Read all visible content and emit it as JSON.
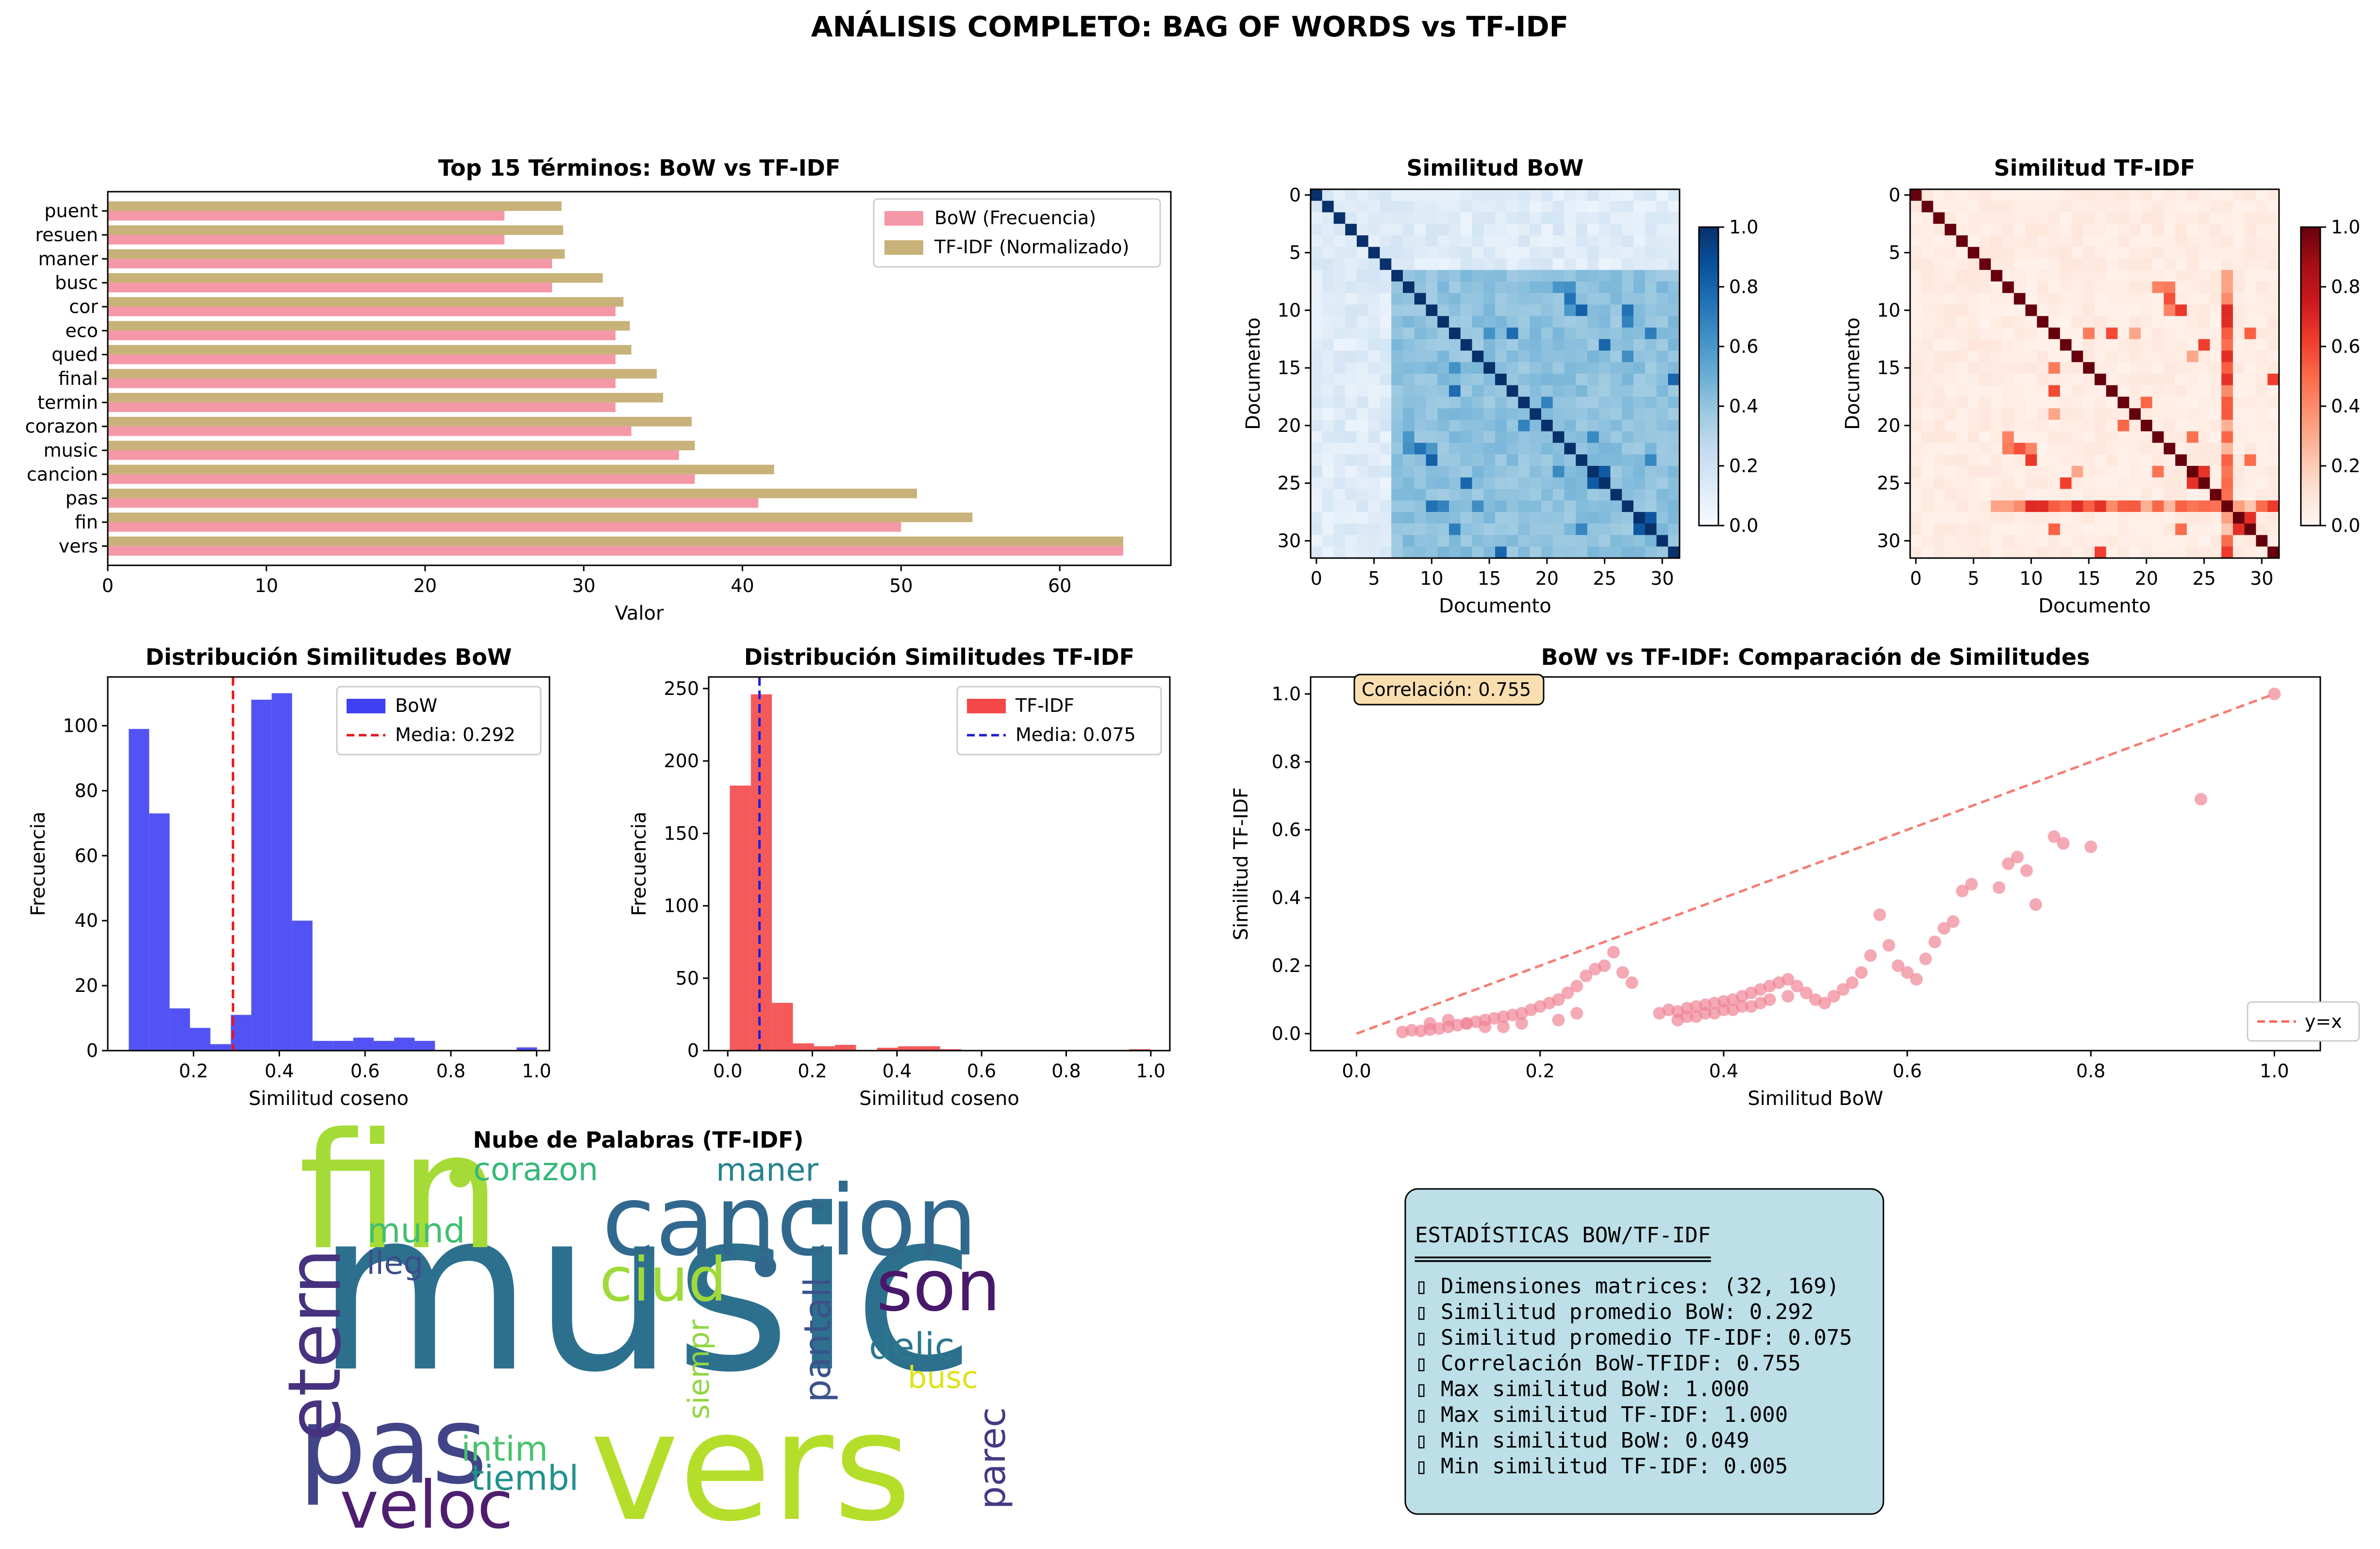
{
  "figure": {
    "title": "ANÁLISIS COMPLETO: BAG OF WORDS vs TF-IDF"
  },
  "colors": {
    "bow_bar": "#f497a7",
    "tfidf_bar": "#c9b27a",
    "hist_bow": "#4040f4",
    "hist_tfidf": "#f44848",
    "scatter": "#f08496",
    "stats_box": "#bcdfe8",
    "corr_box": "#f9deb0"
  },
  "chart_data": [
    {
      "id": "top_terms",
      "type": "bar",
      "orientation": "horizontal",
      "title": "Top 15 Términos: BoW vs TF-IDF",
      "xlabel": "Valor",
      "ylabel": "",
      "xlim": [
        0,
        67
      ],
      "xticks": [
        0,
        10,
        20,
        30,
        40,
        50,
        60
      ],
      "categories": [
        "vers",
        "fin",
        "pas",
        "cancion",
        "music",
        "corazon",
        "termin",
        "final",
        "qued",
        "eco",
        "cor",
        "busc",
        "maner",
        "resuen",
        "puent"
      ],
      "series": [
        {
          "name": "BoW (Frecuencia)",
          "values": [
            64,
            50,
            41,
            37,
            36,
            33,
            32,
            32,
            32,
            32,
            32,
            28,
            28,
            25,
            25
          ]
        },
        {
          "name": "TF-IDF (Normalizado)",
          "values": [
            64,
            54.5,
            51,
            42,
            37,
            36.8,
            35,
            34.6,
            33,
            32.9,
            32.5,
            31.2,
            28.8,
            28.7,
            28.6
          ]
        }
      ],
      "legend": "top-right"
    },
    {
      "id": "sim_bow",
      "type": "heatmap",
      "title": "Similitud BoW",
      "xlabel": "Documento",
      "ylabel": "Documento",
      "size": 32,
      "ticks": [
        0,
        5,
        10,
        15,
        20,
        25,
        30
      ],
      "colorbar_ticks": [
        "0.0",
        "0.2",
        "0.4",
        "0.6",
        "0.8",
        "1.0"
      ],
      "colormap": "Blues",
      "mean_value": 0.292
    },
    {
      "id": "sim_tfidf",
      "type": "heatmap",
      "title": "Similitud TF-IDF",
      "xlabel": "Documento",
      "ylabel": "Documento",
      "size": 32,
      "ticks": [
        0,
        5,
        10,
        15,
        20,
        25,
        30
      ],
      "colorbar_ticks": [
        "0.0",
        "0.2",
        "0.4",
        "0.6",
        "0.8",
        "1.0"
      ],
      "colormap": "Reds",
      "mean_value": 0.075
    },
    {
      "id": "hist_bow",
      "type": "bar",
      "title": "Distribución Similitudes BoW",
      "xlabel": "Similitud coseno",
      "ylabel": "Frecuencia",
      "xlim": [
        0.0,
        1.03
      ],
      "ylim": [
        0,
        115
      ],
      "xticks": [
        0.2,
        0.4,
        0.6,
        0.8,
        1.0
      ],
      "yticks": [
        0,
        20,
        40,
        60,
        80,
        100
      ],
      "bin_start": 0.049,
      "bin_width": 0.0476,
      "values": [
        99,
        73,
        13,
        7,
        2,
        11,
        108,
        110,
        40,
        3,
        3,
        4,
        3,
        4,
        3,
        0,
        0,
        0,
        0,
        1
      ],
      "series_name": "BoW",
      "mean_label": "Media: 0.292",
      "mean": 0.292,
      "legend": "top-right"
    },
    {
      "id": "hist_tfidf",
      "type": "bar",
      "title": "Distribución Similitudes TF-IDF",
      "xlabel": "Similitud coseno",
      "ylabel": "Frecuencia",
      "xlim": [
        -0.045,
        1.045
      ],
      "ylim": [
        0,
        258
      ],
      "xticks": [
        0.0,
        0.2,
        0.4,
        0.6,
        0.8,
        1.0
      ],
      "yticks": [
        0,
        50,
        100,
        150,
        200,
        250
      ],
      "bin_start": 0.005,
      "bin_width": 0.0497,
      "values": [
        183,
        246,
        33,
        5,
        3,
        4,
        0,
        2,
        3,
        3,
        1,
        0,
        0,
        0,
        0,
        0,
        0,
        0,
        0,
        1
      ],
      "series_name": "TF-IDF",
      "mean_label": "Media: 0.075",
      "mean": 0.075,
      "legend": "top-right"
    },
    {
      "id": "scatter",
      "type": "scatter",
      "title": "BoW vs TF-IDF: Comparación de Similitudes",
      "xlabel": "Similitud BoW",
      "ylabel": "Similitud TF-IDF",
      "xlim": [
        -0.05,
        1.05
      ],
      "ylim": [
        -0.05,
        1.05
      ],
      "xticks": [
        0.0,
        0.2,
        0.4,
        0.6,
        0.8,
        1.0
      ],
      "yticks": [
        0.0,
        0.2,
        0.4,
        0.6,
        0.8,
        1.0
      ],
      "annotation": "Correlación: 0.755",
      "reference_line_label": "y=x",
      "points": [
        [
          0.05,
          0.005
        ],
        [
          0.06,
          0.01
        ],
        [
          0.07,
          0.008
        ],
        [
          0.08,
          0.012
        ],
        [
          0.09,
          0.015
        ],
        [
          0.1,
          0.02
        ],
        [
          0.11,
          0.025
        ],
        [
          0.12,
          0.03
        ],
        [
          0.13,
          0.035
        ],
        [
          0.14,
          0.04
        ],
        [
          0.15,
          0.045
        ],
        [
          0.16,
          0.05
        ],
        [
          0.17,
          0.055
        ],
        [
          0.18,
          0.06
        ],
        [
          0.19,
          0.07
        ],
        [
          0.2,
          0.08
        ],
        [
          0.21,
          0.09
        ],
        [
          0.22,
          0.1
        ],
        [
          0.23,
          0.12
        ],
        [
          0.24,
          0.14
        ],
        [
          0.25,
          0.17
        ],
        [
          0.26,
          0.19
        ],
        [
          0.27,
          0.2
        ],
        [
          0.28,
          0.24
        ],
        [
          0.29,
          0.18
        ],
        [
          0.3,
          0.15
        ],
        [
          0.24,
          0.06
        ],
        [
          0.22,
          0.04
        ],
        [
          0.18,
          0.03
        ],
        [
          0.16,
          0.02
        ],
        [
          0.14,
          0.02
        ],
        [
          0.12,
          0.03
        ],
        [
          0.1,
          0.04
        ],
        [
          0.08,
          0.03
        ],
        [
          0.33,
          0.06
        ],
        [
          0.34,
          0.07
        ],
        [
          0.35,
          0.065
        ],
        [
          0.36,
          0.075
        ],
        [
          0.37,
          0.08
        ],
        [
          0.38,
          0.085
        ],
        [
          0.39,
          0.09
        ],
        [
          0.4,
          0.095
        ],
        [
          0.41,
          0.1
        ],
        [
          0.42,
          0.11
        ],
        [
          0.43,
          0.12
        ],
        [
          0.44,
          0.13
        ],
        [
          0.45,
          0.14
        ],
        [
          0.46,
          0.15
        ],
        [
          0.47,
          0.16
        ],
        [
          0.48,
          0.14
        ],
        [
          0.49,
          0.12
        ],
        [
          0.5,
          0.1
        ],
        [
          0.51,
          0.09
        ],
        [
          0.52,
          0.11
        ],
        [
          0.53,
          0.13
        ],
        [
          0.54,
          0.15
        ],
        [
          0.55,
          0.18
        ],
        [
          0.56,
          0.23
        ],
        [
          0.57,
          0.35
        ],
        [
          0.58,
          0.26
        ],
        [
          0.59,
          0.2
        ],
        [
          0.6,
          0.18
        ],
        [
          0.61,
          0.16
        ],
        [
          0.62,
          0.22
        ],
        [
          0.63,
          0.27
        ],
        [
          0.64,
          0.31
        ],
        [
          0.65,
          0.33
        ],
        [
          0.66,
          0.42
        ],
        [
          0.67,
          0.44
        ],
        [
          0.7,
          0.43
        ],
        [
          0.71,
          0.5
        ],
        [
          0.72,
          0.52
        ],
        [
          0.73,
          0.48
        ],
        [
          0.74,
          0.38
        ],
        [
          0.76,
          0.58
        ],
        [
          0.77,
          0.56
        ],
        [
          0.8,
          0.55
        ],
        [
          0.92,
          0.69
        ],
        [
          1.0,
          1.0
        ],
        [
          0.36,
          0.05
        ],
        [
          0.38,
          0.06
        ],
        [
          0.4,
          0.07
        ],
        [
          0.42,
          0.08
        ],
        [
          0.44,
          0.09
        ],
        [
          0.35,
          0.04
        ],
        [
          0.37,
          0.05
        ],
        [
          0.39,
          0.06
        ],
        [
          0.41,
          0.07
        ],
        [
          0.43,
          0.08
        ],
        [
          0.45,
          0.1
        ],
        [
          0.47,
          0.11
        ]
      ]
    }
  ],
  "wordcloud": {
    "title": "Nube de Palabras (TF-IDF)",
    "words": [
      {
        "text": "music",
        "color": "#2d708e"
      },
      {
        "text": "fin",
        "color": "#a5db36"
      },
      {
        "text": "vers",
        "color": "#b5de2b"
      },
      {
        "text": "cancion",
        "color": "#31688e"
      },
      {
        "text": "pas",
        "color": "#414487"
      },
      {
        "text": "son",
        "color": "#48186a"
      },
      {
        "text": "etern",
        "color": "#46327e"
      },
      {
        "text": "veloc",
        "color": "#4e1e6f"
      },
      {
        "text": "ciud",
        "color": "#a0da39"
      },
      {
        "text": "corazon",
        "color": "#35b779"
      },
      {
        "text": "maner",
        "color": "#25838e"
      },
      {
        "text": "mund",
        "color": "#42be71"
      },
      {
        "text": "lleg",
        "color": "#3e4c8a"
      },
      {
        "text": "pantall",
        "color": "#3b528b"
      },
      {
        "text": "siempr",
        "color": "#90d743"
      },
      {
        "text": "delic",
        "color": "#2a788e"
      },
      {
        "text": "busc",
        "color": "#dde318"
      },
      {
        "text": "intim",
        "color": "#4ac16d"
      },
      {
        "text": "tiembl",
        "color": "#21918c"
      },
      {
        "text": "parec",
        "color": "#443a83"
      }
    ]
  },
  "stats": {
    "title": "ESTADÍSTICAS BOW/TF-IDF",
    "rule": "═══════════════════════",
    "lines": [
      "▯ Dimensiones matrices: (32, 169)",
      "▯ Similitud promedio BoW: 0.292",
      "▯ Similitud promedio TF-IDF: 0.075",
      "▯ Correlación BoW-TFIDF: 0.755",
      "▯ Max similitud BoW: 1.000",
      "▯ Max similitud TF-IDF: 1.000",
      "▯ Min similitud BoW: 0.049",
      "▯ Min similitud TF-IDF: 0.005"
    ]
  }
}
